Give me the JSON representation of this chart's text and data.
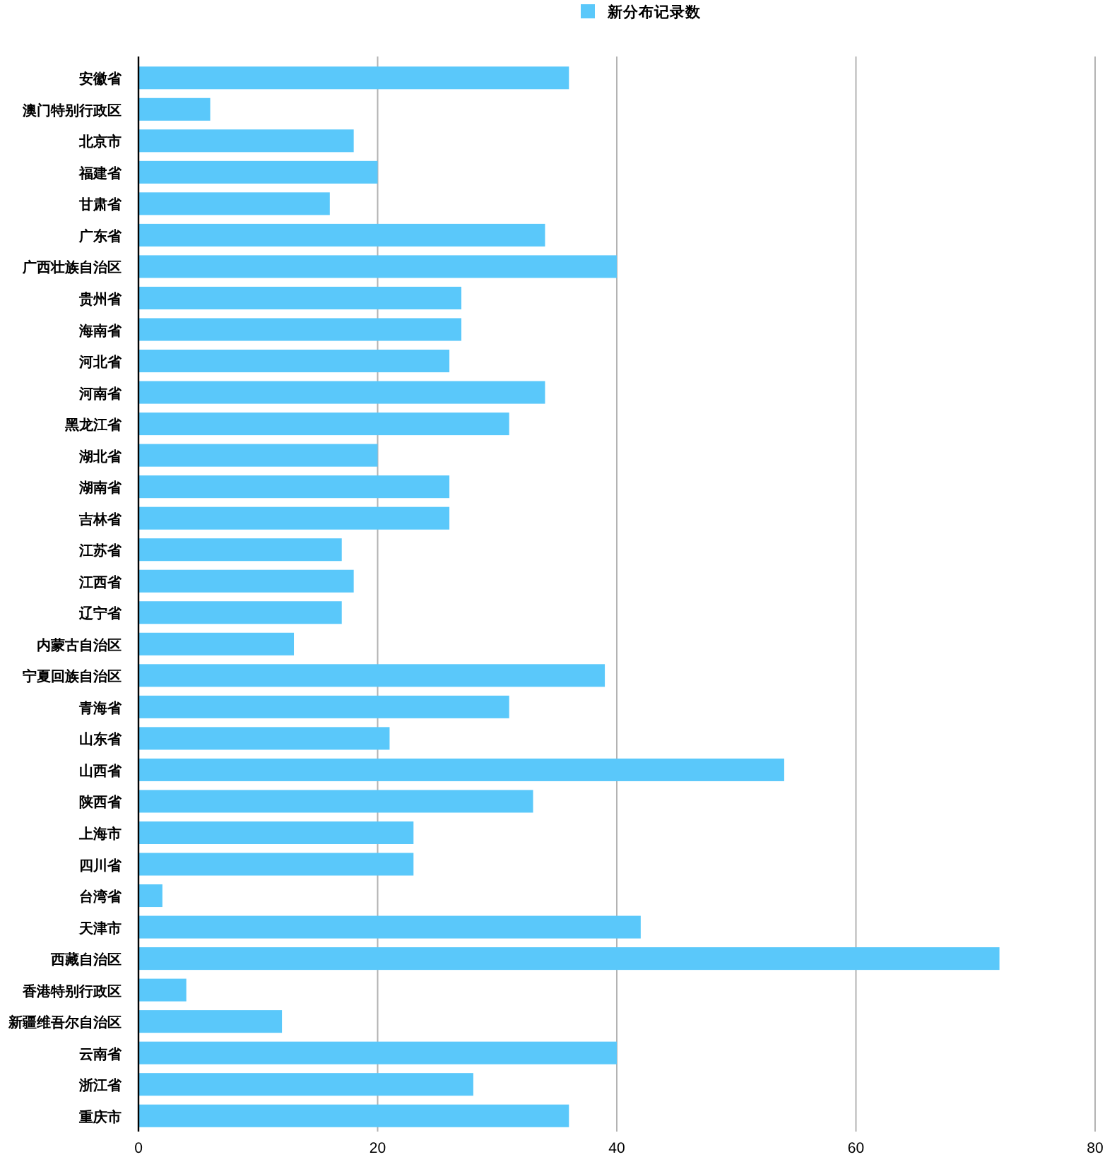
{
  "chart_data": {
    "type": "bar",
    "orientation": "horizontal",
    "categories": [
      "安徽省",
      "澳门特别行政区",
      "北京市",
      "福建省",
      "甘肃省",
      "广东省",
      "广西壮族自治区",
      "贵州省",
      "海南省",
      "河北省",
      "河南省",
      "黑龙江省",
      "湖北省",
      "湖南省",
      "吉林省",
      "江苏省",
      "江西省",
      "辽宁省",
      "内蒙古自治区",
      "宁夏回族自治区",
      "青海省",
      "山东省",
      "山西省",
      "陕西省",
      "上海市",
      "四川省",
      "台湾省",
      "天津市",
      "西藏自治区",
      "香港特别行政区",
      "新疆维吾尔自治区",
      "云南省",
      "浙江省",
      "重庆市"
    ],
    "series": [
      {
        "name": "新分布记录数",
        "color": "#5ac8fa",
        "values": [
          36,
          6,
          18,
          20,
          16,
          34,
          40,
          27,
          27,
          26,
          34,
          31,
          20,
          26,
          26,
          17,
          18,
          17,
          13,
          39,
          31,
          21,
          54,
          33,
          23,
          23,
          2,
          42,
          72,
          4,
          12,
          40,
          28,
          36
        ]
      }
    ],
    "xlim": [
      0,
      80
    ],
    "xticks": [
      0,
      20,
      40,
      60,
      80
    ],
    "grid": "x",
    "legend": "top"
  }
}
